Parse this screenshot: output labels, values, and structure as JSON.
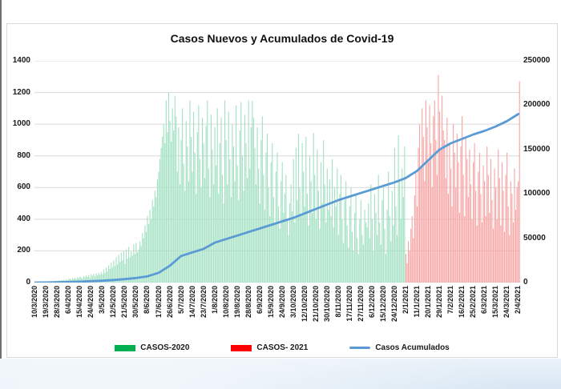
{
  "chart": {
    "title": "Casos Nuevos y Acumulados de Covid-19"
  },
  "chart_data": {
    "type": "bar+line",
    "title": "Casos Nuevos y Acumulados de Covid-19",
    "grid": "horizontal",
    "left_axis": {
      "min": 0,
      "max": 1400,
      "ticks": [
        0,
        200,
        400,
        600,
        800,
        1000,
        1200,
        1400
      ]
    },
    "right_axis": {
      "min": 0,
      "max": 250000,
      "ticks": [
        0,
        50000,
        100000,
        150000,
        200000,
        250000
      ]
    },
    "x_labels": [
      "10/3/2020",
      "19/3/2020",
      "28/3/2020",
      "6/4/2020",
      "15/4/2020",
      "24/4/2020",
      "3/5/2020",
      "12/5/2020",
      "21/5/2020",
      "30/5/2020",
      "8/6/2020",
      "17/6/2020",
      "26/6/2020",
      "5/7/2020",
      "14/7/2020",
      "23/7/2020",
      "1/8/2020",
      "10/8/2020",
      "19/8/2020",
      "28/8/2020",
      "6/9/2020",
      "15/9/2020",
      "24/9/2020",
      "3/10/2020",
      "12/10/2020",
      "21/10/2020",
      "30/10/2020",
      "8/11/2020",
      "17/11/2020",
      "27/11/2020",
      "6/12/2020",
      "15/12/2020",
      "24/12/2020",
      "2/1/2021",
      "11/1/2021",
      "20/1/2021",
      "29/1/2021",
      "7/2/2021",
      "16/2/2021",
      "25/2/2021",
      "6/3/2021",
      "15/3/2021",
      "24/3/2021",
      "2/4/2021"
    ],
    "series": [
      {
        "name": "CASOS-2020",
        "type": "bar",
        "axis": "left",
        "color": "#00B050",
        "bar_fill": "#a4e1c3"
      },
      {
        "name": "CASOS- 2021",
        "type": "bar",
        "axis": "left",
        "color": "#FF0000",
        "bar_fill": "#f7a5a5"
      },
      {
        "name": "Casos Acumulados",
        "type": "line",
        "axis": "right",
        "color": "#5B9BD5"
      }
    ],
    "daily_new_cases": [
      1,
      1,
      2,
      1,
      3,
      2,
      4,
      3,
      5,
      6,
      4,
      7,
      8,
      6,
      9,
      11,
      8,
      12,
      10,
      14,
      12,
      15,
      14,
      18,
      12,
      20,
      16,
      22,
      25,
      19,
      28,
      24,
      30,
      22,
      34,
      27,
      38,
      30,
      26,
      40,
      33,
      45,
      36,
      48,
      30,
      52,
      42,
      55,
      38,
      58,
      46,
      60,
      48,
      65,
      52,
      80,
      60,
      95,
      70,
      110,
      85,
      125,
      95,
      140,
      105,
      160,
      115,
      175,
      130,
      190,
      140,
      200,
      120,
      210,
      150,
      225,
      160,
      195,
      170,
      240,
      180,
      250,
      190,
      210,
      260,
      230,
      310,
      280,
      360,
      320,
      420,
      370,
      460,
      400,
      520,
      480,
      580,
      540,
      650,
      700,
      780,
      850,
      920,
      1000,
      880,
      1150,
      950,
      1200,
      1020,
      890,
      1100,
      960,
      1180,
      1050,
      700,
      980,
      620,
      900,
      1100,
      750,
      580,
      1020,
      860,
      640,
      1150,
      920,
      700,
      1080,
      820,
      560,
      950,
      1120,
      780,
      600,
      1040,
      880,
      660,
      990,
      1150,
      720,
      540,
      1060,
      840,
      620,
      980,
      740,
      1100,
      560,
      880,
      1040,
      680,
      500,
      1150,
      900,
      620,
      1080,
      780,
      540,
      1000,
      860,
      640,
      1120,
      740,
      520,
      960,
      1140,
      800,
      580,
      1060,
      880,
      660,
      1150,
      720,
      980,
      1147,
      1040,
      850,
      620,
      980,
      720,
      500,
      900,
      1050,
      680,
      460,
      820,
      940,
      600,
      420,
      760,
      880,
      540,
      380,
      700,
      820,
      480,
      340,
      640,
      760,
      440,
      560,
      680,
      400,
      300,
      500,
      620,
      450,
      780,
      380,
      850,
      520,
      940,
      600,
      420,
      880,
      700,
      480,
      920,
      560,
      360,
      800,
      640,
      440,
      945,
      680,
      400,
      840,
      580,
      340,
      760,
      500,
      900,
      620,
      380,
      720,
      460,
      650,
      420,
      780,
      350,
      600,
      480,
      720,
      300,
      560,
      680,
      400,
      250,
      520,
      640,
      360,
      220,
      480,
      600,
      320,
      200,
      440,
      560,
      280,
      180,
      400,
      520,
      300,
      240,
      460,
      380,
      350,
      500,
      280,
      620,
      400,
      200,
      560,
      440,
      300,
      680,
      380,
      240,
      520,
      600,
      340,
      180,
      460,
      700,
      420,
      260,
      580,
      360,
      850,
      480,
      300,
      930,
      640,
      400,
      720,
      540,
      860,
      180,
      120,
      260,
      200,
      340,
      420,
      280,
      550,
      700,
      480,
      850,
      1000,
      720,
      1100,
      920,
      640,
      1150,
      980,
      760,
      1120,
      880,
      600,
      1050,
      1150,
      900,
      680,
      1310,
      1080,
      840,
      1180,
      960,
      900,
      660,
      1040,
      560,
      880,
      720,
      480,
      1000,
      820,
      600,
      940,
      760,
      440,
      860,
      1050,
      680,
      420,
      920,
      780,
      540,
      840,
      620,
      400,
      760,
      880,
      580,
      360,
      700,
      820,
      560,
      380,
      740,
      640,
      420,
      860,
      680,
      440,
      780,
      520,
      340,
      720,
      600,
      400,
      840,
      660,
      360,
      760,
      580,
      320,
      680,
      820,
      480,
      300,
      640,
      560,
      380,
      720,
      460,
      600,
      640,
      1270
    ],
    "split_index_2021": 297,
    "cumulative_at_labels": [
      0,
      100,
      300,
      600,
      1000,
      1500,
      2100,
      2900,
      3900,
      5100,
      7000,
      11000,
      19000,
      30000,
      34000,
      38000,
      45000,
      49000,
      53000,
      57000,
      61000,
      65000,
      69000,
      73000,
      78000,
      83000,
      88000,
      93000,
      97000,
      101000,
      105000,
      109000,
      113000,
      118000,
      126000,
      138000,
      150000,
      157000,
      162000,
      167000,
      171000,
      176000,
      182000,
      190000
    ]
  },
  "legend": {
    "items": [
      {
        "label": "CASOS-2020",
        "color": "#00B050",
        "swatch": "bar"
      },
      {
        "label": "CASOS- 2021",
        "color": "#FF0000",
        "swatch": "bar"
      },
      {
        "label": "Casos Acumulados",
        "color": "#5B9BD5",
        "swatch": "line"
      }
    ]
  },
  "colors": {
    "grid": "#d9d9d9",
    "axis_line": "#cfcfcf",
    "bar_green": "#a4e1c3",
    "bar_red": "#f7a5a5",
    "line_blue": "#5B9BD5"
  }
}
